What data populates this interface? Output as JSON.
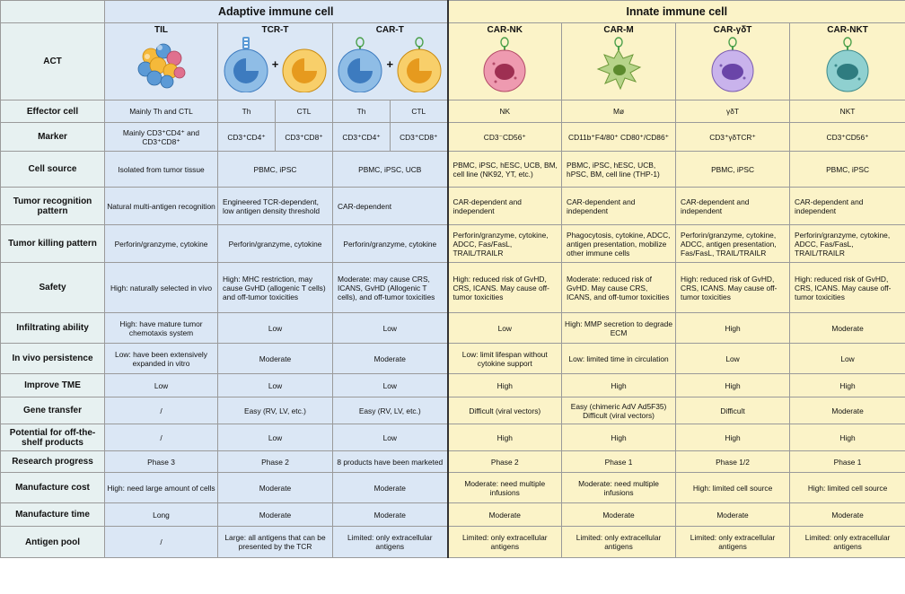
{
  "groups": {
    "adaptive": "Adaptive immune cell",
    "innate": "Innate immune cell"
  },
  "act_label": "ACT",
  "columns": [
    {
      "name": "TIL",
      "icon": "til-cluster-icon"
    },
    {
      "name": "TCR-T",
      "icon": "tcr-t-cells-icon"
    },
    {
      "name": "CAR-T",
      "icon": "car-t-cells-icon"
    },
    {
      "name": "CAR-NK",
      "icon": "car-nk-cell-icon"
    },
    {
      "name": "CAR-M",
      "icon": "car-m-macrophage-icon"
    },
    {
      "name": "CAR-γδT",
      "icon": "car-gdt-cell-icon"
    },
    {
      "name": "CAR-NKT",
      "icon": "car-nkt-cell-icon"
    }
  ],
  "plus": "+",
  "rows": {
    "effector": {
      "label": "Effector cell",
      "til": "Mainly Th and CTL",
      "tcr_a": "Th",
      "tcr_b": "CTL",
      "car_a": "Th",
      "car_b": "CTL",
      "nk": "NK",
      "m": "Mø",
      "gdt": "γδT",
      "nkt": "NKT"
    },
    "marker": {
      "label": "Marker",
      "til": "Mainly CD3⁺CD4⁺ and CD3⁺CD8⁺",
      "tcr_a": "CD3⁺CD4⁺",
      "tcr_b": "CD3⁺CD8⁺",
      "car_a": "CD3⁺CD4⁺",
      "car_b": "CD3⁺CD8⁺",
      "nk": "CD3⁻CD56⁺",
      "m": "CD11b⁺F4/80⁺ CD80⁺/CD86⁺",
      "gdt": "CD3⁺γδTCR⁺",
      "nkt": "CD3⁺CD56⁺"
    },
    "source": {
      "label": "Cell source",
      "til": "Isolated from tumor tissue",
      "tcr": "PBMC, iPSC",
      "car": "PBMC, iPSC, UCB",
      "nk": "PBMC, iPSC, hESC, UCB, BM, cell line (NK92, YT, etc.)",
      "m": "PBMC, iPSC, hESC, UCB, hPSC, BM, cell line (THP-1)",
      "gdt": "PBMC, iPSC",
      "nkt": "PBMC, iPSC"
    },
    "recognition": {
      "label": "Tumor recognition pattern",
      "til": "Natural multi-antigen recognition",
      "tcr": "Engineered TCR-dependent, low antigen density threshold",
      "car": "CAR-dependent",
      "nk": "CAR-dependent and independent",
      "m": "CAR-dependent and independent",
      "gdt": "CAR-dependent and independent",
      "nkt": "CAR-dependent and independent"
    },
    "killing": {
      "label": "Tumor killing pattern",
      "til": "Perforin/granzyme, cytokine",
      "tcr": "Perforin/granzyme, cytokine",
      "car": "Perforin/granzyme, cytokine",
      "nk": "Perforin/granzyme, cytokine, ADCC, Fas/FasL, TRAIL/TRAILR",
      "m": "Phagocytosis, cytokine, ADCC, antigen presentation, mobilize other immune cells",
      "gdt": "Perforin/granzyme, cytokine, ADCC, antigen presentation, Fas/FasL, TRAIL/TRAILR",
      "nkt": "Perforin/granzyme, cytokine, ADCC, Fas/FasL, TRAIL/TRAILR"
    },
    "safety": {
      "label": "Safety",
      "til": "High: naturally selected in vivo",
      "tcr": "High: MHC restriction, may cause GvHD (allogenic T cells) and off-tumor toxicities",
      "car": "Moderate: may cause CRS, ICANS, GvHD (Allogenic T cells), and off-tumor toxicities",
      "nk": "High: reduced risk of GvHD, CRS, ICANS. May cause off-tumor toxicities",
      "m": "Moderate: reduced risk of GvHD. May cause CRS, ICANS, and off-tumor toxicities",
      "gdt": "High: reduced risk of GvHD, CRS, ICANS. May cause off-tumor toxicities",
      "nkt": "High: reduced risk of GvHD, CRS, ICANS. May cause off-tumor toxicities"
    },
    "infiltrating": {
      "label": "Infiltrating ability",
      "til": "High: have mature tumor chemotaxis system",
      "tcr": "Low",
      "car": "Low",
      "nk": "Low",
      "m": "High: MMP secretion to degrade ECM",
      "gdt": "High",
      "nkt": "Moderate"
    },
    "persistence": {
      "label": "In vivo persistence",
      "til": "Low: have been extensively expanded in vitro",
      "tcr": "Moderate",
      "car": "Moderate",
      "nk": "Low: limit lifespan without cytokine support",
      "m": "Low: limited time in circulation",
      "gdt": "Low",
      "nkt": "Low"
    },
    "tme": {
      "label": "Improve TME",
      "til": "Low",
      "tcr": "Low",
      "car": "Low",
      "nk": "High",
      "m": "High",
      "gdt": "High",
      "nkt": "High"
    },
    "gene": {
      "label": "Gene transfer",
      "til": "/",
      "tcr": "Easy (RV, LV, etc.)",
      "car": "Easy (RV, LV, etc.)",
      "nk": "Difficult (viral vectors)",
      "m": "Easy (chimeric AdV Ad5F35) Difficult (viral vectors)",
      "gdt": "Difficult",
      "nkt": "Moderate"
    },
    "offshelf": {
      "label": "Potential for off-the-shelf products",
      "til": "/",
      "tcr": "Low",
      "car": "Low",
      "nk": "High",
      "m": "High",
      "gdt": "High",
      "nkt": "High"
    },
    "research": {
      "label": "Research progress",
      "til": "Phase 3",
      "tcr": "Phase 2",
      "car": "8 products have been marketed",
      "nk": "Phase 2",
      "m": "Phase 1",
      "gdt": "Phase 1/2",
      "nkt": "Phase 1"
    },
    "cost": {
      "label": "Manufacture cost",
      "til": "High: need large amount of cells",
      "tcr": "Moderate",
      "car": "Moderate",
      "nk": "Moderate: need multiple infusions",
      "m": "Moderate: need multiple infusions",
      "gdt": "High: limited cell source",
      "nkt": "High: limited cell source"
    },
    "time": {
      "label": "Manufacture time",
      "til": "Long",
      "tcr": "Moderate",
      "car": "Moderate",
      "nk": "Moderate",
      "m": "Moderate",
      "gdt": "Moderate",
      "nkt": "Moderate"
    },
    "antigen": {
      "label": "Antigen pool",
      "til": "/",
      "tcr": "Large: all antigens that can be presented by the TCR",
      "car": "Limited: only extracellular antigens",
      "nk": "Limited: only extracellular antigens",
      "m": "Limited: only extracellular antigens",
      "gdt": "Limited: only extracellular antigens",
      "nkt": "Limited: only extracellular antigens"
    }
  },
  "colors": {
    "adaptive_bg": "#dbe7f5",
    "innate_bg": "#fbf3c8",
    "label_bg": "#e7f1f1",
    "th_cell": "#5b9ad6",
    "ctl_cell": "#f5b93a",
    "nk_cell": "#e0708e",
    "m_cell": "#9bbf6a",
    "gdt_cell": "#a98bd6",
    "nkt_cell": "#5fb3b5"
  }
}
